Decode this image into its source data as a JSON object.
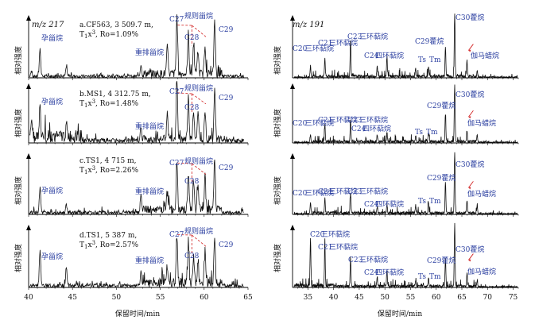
{
  "colors": {
    "label": "#2b3fa0",
    "trace": "#111111",
    "connector": "#d22222"
  },
  "left": {
    "ion": "m/z 217",
    "ylabel": "相对强度",
    "xlabel": "保留时间/min",
    "ticks": [
      "40",
      "45",
      "50",
      "55",
      "60",
      "65"
    ],
    "peaks": {
      "pregnane": "孕甾烷",
      "rearranged": "重排甾烷",
      "regular": "规则甾烷",
      "c27": "C27",
      "c28": "C28",
      "c29": "C29"
    },
    "samples": [
      {
        "line1": "a.CF563, 3 509.7 m,",
        "tx": "T",
        "ro": "Ro=1.09%"
      },
      {
        "line1": "b.MS1, 4 312.75 m,",
        "tx": "T",
        "ro": "Ro=1.48%"
      },
      {
        "line1": "c.TS1, 4 715 m,",
        "tx": "T",
        "ro": "Ro=2.26%"
      },
      {
        "line1": "d.TS1, 5 387 m,",
        "tx": "T",
        "ro": "Ro=2.57%"
      }
    ]
  },
  "right": {
    "ion": "m/z 191",
    "ylabel": "相对强度",
    "xlabel": "保留时间/min",
    "ticks": [
      "35",
      "40",
      "45",
      "50",
      "55",
      "60",
      "65",
      "70",
      "75"
    ],
    "peaks": {
      "c20": "C20",
      "c21": "C21",
      "c23": "C23",
      "c24": "C24",
      "tricyclic": "三环萜烷",
      "tetracyclic": "四环萜烷",
      "ts": "Ts",
      "tm": "Tm",
      "c29h": "C29藿烷",
      "c30h": "C30藿烷",
      "gammacerane": "伽马蜡烷",
      "c29": "C29",
      "c30": "C30",
      "hopane": "藿烷"
    }
  },
  "chart_data": [
    {
      "type": "line",
      "title": "m/z 217",
      "xlabel": "保留时间/min",
      "ylabel": "相对强度",
      "xlim": [
        40,
        65
      ],
      "ylim": [
        0,
        1
      ],
      "series": [
        {
          "name": "a.CF563, 3 509.7 m",
          "x": [
            40.3,
            41.3,
            44.3,
            52.8,
            55.8,
            56.9,
            58.2,
            58.8,
            59.3,
            60.1,
            61.2
          ],
          "values": [
            0.08,
            0.42,
            0.14,
            0.18,
            0.4,
            0.88,
            0.62,
            0.42,
            0.35,
            0.45,
            0.8
          ]
        },
        {
          "name": "b.MS1, 4 312.75 m",
          "x": [
            40.3,
            41.3,
            44.3,
            52.8,
            55.8,
            56.9,
            58.2,
            58.8,
            59.3,
            60.1,
            61.2
          ],
          "values": [
            0.3,
            0.45,
            0.18,
            0.22,
            0.45,
            0.92,
            0.66,
            0.45,
            0.4,
            0.48,
            0.85
          ]
        },
        {
          "name": "c.TS1, 4 715 m",
          "x": [
            41.3,
            44.3,
            52.8,
            55.8,
            56.9,
            58.2,
            58.8,
            59.3,
            60.1,
            61.2
          ],
          "values": [
            0.38,
            0.12,
            0.32,
            0.28,
            0.78,
            0.55,
            0.38,
            0.36,
            0.52,
            0.82
          ]
        },
        {
          "name": "d.TS1, 5 387 m",
          "x": [
            41.3,
            44.3,
            52.8,
            55.8,
            56.9,
            58.2,
            58.8,
            59.3,
            60.1,
            61.2
          ],
          "values": [
            0.55,
            0.28,
            0.22,
            0.28,
            0.75,
            0.55,
            0.42,
            0.36,
            0.48,
            0.7
          ]
        }
      ]
    },
    {
      "type": "line",
      "title": "m/z 191",
      "xlabel": "保留时间/min",
      "ylabel": "相对强度",
      "xlim": [
        32,
        76
      ],
      "ylim": [
        0,
        1
      ],
      "series": [
        {
          "name": "a.CF563, 3 509.7 m",
          "x": [
            35.5,
            38.3,
            43.3,
            48.5,
            50.4,
            56.0,
            58.5,
            61.8,
            63.6,
            66.0,
            68.0
          ],
          "values": [
            0.18,
            0.28,
            0.55,
            0.15,
            0.32,
            0.12,
            0.15,
            0.45,
            0.95,
            0.25,
            0.1
          ]
        },
        {
          "name": "b.MS1, 4 312.75 m",
          "x": [
            35.5,
            38.3,
            43.3,
            48.5,
            50.4,
            56.0,
            58.5,
            61.8,
            63.6,
            66.0,
            68.0
          ],
          "values": [
            0.12,
            0.28,
            0.35,
            0.12,
            0.15,
            0.1,
            0.15,
            0.45,
            0.92,
            0.18,
            0.1
          ]
        },
        {
          "name": "c.TS1, 4 715 m",
          "x": [
            35.5,
            38.3,
            43.3,
            48.5,
            50.4,
            56.0,
            58.5,
            61.8,
            63.6,
            66.0,
            68.0
          ],
          "values": [
            0.18,
            0.22,
            0.3,
            0.1,
            0.15,
            0.12,
            0.15,
            0.48,
            0.95,
            0.2,
            0.1
          ]
        },
        {
          "name": "d.TS1, 5 387 m",
          "x": [
            35.5,
            38.3,
            43.3,
            48.5,
            50.4,
            56.0,
            58.5,
            61.8,
            63.6,
            66.0,
            68.0
          ],
          "values": [
            0.72,
            0.62,
            0.42,
            0.15,
            0.25,
            0.1,
            0.12,
            0.42,
            0.95,
            0.2,
            0.08
          ]
        }
      ]
    }
  ]
}
